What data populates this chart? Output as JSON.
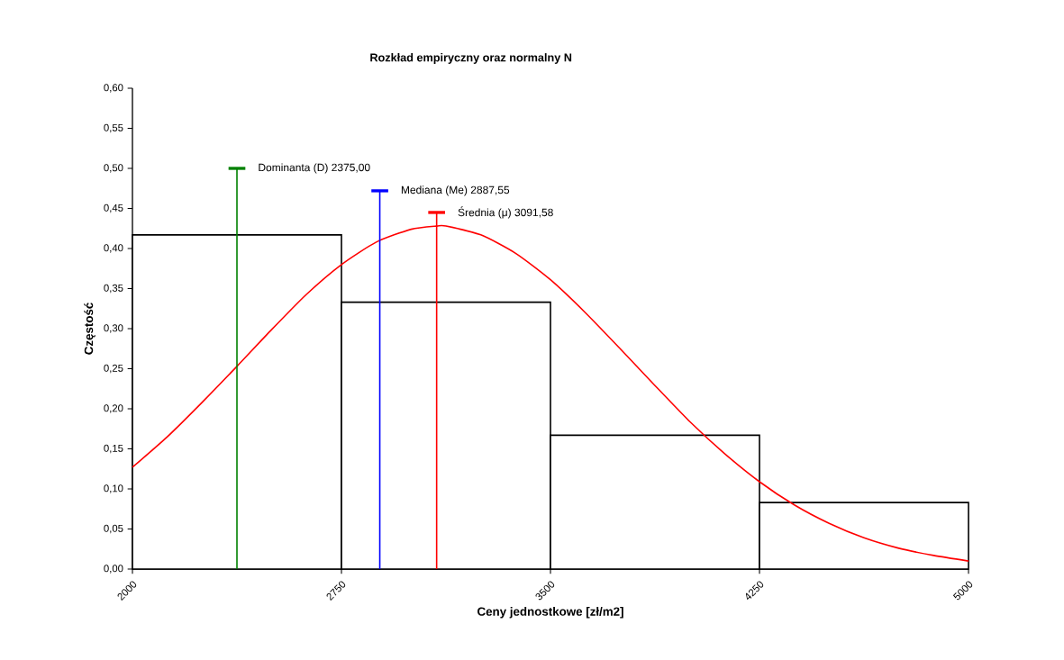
{
  "chart_data": {
    "type": "histogram",
    "title": "Rozkład empiryczny oraz normalny N",
    "xlabel": "Ceny jednostkowe  [zł/m2]",
    "ylabel": "Częstość",
    "bins": [
      2000,
      2750,
      3500,
      4250,
      5000
    ],
    "values": [
      0.417,
      0.333,
      0.167,
      0.083
    ],
    "color": "#000000",
    "series": [
      {
        "type": "line",
        "color": "#ff0000",
        "x": [
          2000,
          2125,
          2250,
          2375,
          2500,
          2625,
          2750,
          2875,
          3000,
          3091.58,
          3125,
          3250,
          3375,
          3500,
          3625,
          3750,
          3875,
          4000,
          4125,
          4250,
          4375,
          4500,
          4625,
          4750,
          4875,
          5000
        ],
        "values": [
          0.127,
          0.165,
          0.208,
          0.253,
          0.299,
          0.343,
          0.38,
          0.408,
          0.424,
          0.428,
          0.428,
          0.417,
          0.394,
          0.361,
          0.32,
          0.275,
          0.229,
          0.184,
          0.144,
          0.109,
          0.08,
          0.057,
          0.039,
          0.026,
          0.017,
          0.01
        ]
      },
      {
        "type": "line",
        "color": "#008000",
        "x": [
          2375,
          2375
        ],
        "values": [
          0,
          0.5
        ]
      },
      {
        "type": "line",
        "color": "#0000ff",
        "x": [
          2887.55,
          2887.55
        ],
        "values": [
          0,
          0.472
        ]
      },
      {
        "type": "line",
        "color": "#ff0000",
        "x": [
          3091.58,
          3091.58
        ],
        "values": [
          0,
          0.445
        ]
      }
    ],
    "annotations": [
      {
        "text": "Dominanta (D) 2375,00",
        "x": 2375,
        "y": 0.5
      },
      {
        "text": "Mediana (Me) 2887,55",
        "x": 2887.55,
        "y": 0.472
      },
      {
        "text": "Średnia (μ) 3091,58",
        "x": 3091.58,
        "y": 0.445
      }
    ],
    "xlim": [
      2000,
      5000
    ],
    "ylim": [
      0,
      0.6
    ],
    "xticks": [
      2000,
      2750,
      3500,
      4250,
      5000
    ],
    "yticks": [
      {
        "value": 0,
        "label": "0,00"
      },
      {
        "value": 0.05,
        "label": "0,05"
      },
      {
        "value": 0.1,
        "label": "0,10"
      },
      {
        "value": 0.15,
        "label": "0,15"
      },
      {
        "value": 0.2,
        "label": "0,20"
      },
      {
        "value": 0.25,
        "label": "0,25"
      },
      {
        "value": 0.3,
        "label": "0,30"
      },
      {
        "value": 0.35,
        "label": "0,35"
      },
      {
        "value": 0.4,
        "label": "0,40"
      },
      {
        "value": 0.45,
        "label": "0,45"
      },
      {
        "value": 0.5,
        "label": "0,50"
      },
      {
        "value": 0.55,
        "label": "0,55"
      },
      {
        "value": 0.6,
        "label": "0,60"
      }
    ]
  }
}
